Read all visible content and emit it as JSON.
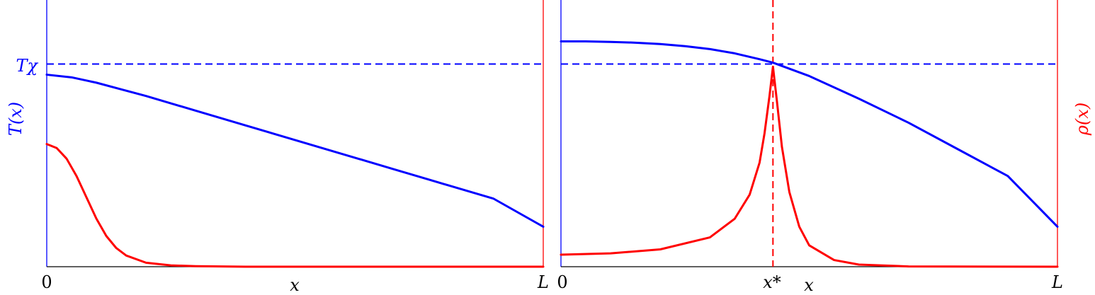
{
  "chart_data": [
    {
      "type": "line",
      "panel": "left",
      "xlabel": "x",
      "ylabel_left": "T(x)",
      "x_tick_labels": [
        "0",
        "L"
      ],
      "x_range": [
        0,
        1
      ],
      "y_range": [
        0,
        1
      ],
      "reference_lines": [
        {
          "orientation": "horizontal",
          "y": 0.76,
          "label": "Tχ",
          "color": "#0000ff",
          "style": "dashed"
        }
      ],
      "series": [
        {
          "color": "#0000ff",
          "x": [
            0,
            0.05,
            0.1,
            0.15,
            0.2,
            0.3,
            0.4,
            0.5,
            0.6,
            0.7,
            0.8,
            0.9,
            1.0
          ],
          "y": [
            0.72,
            0.71,
            0.69,
            0.665,
            0.64,
            0.585,
            0.53,
            0.475,
            0.42,
            0.365,
            0.31,
            0.255,
            0.15
          ]
        },
        {
          "color": "#ff0000",
          "x": [
            0,
            0.02,
            0.04,
            0.06,
            0.08,
            0.1,
            0.12,
            0.14,
            0.16,
            0.2,
            0.25,
            0.3,
            0.4,
            0.6,
            1.0
          ],
          "y": [
            0.46,
            0.445,
            0.405,
            0.34,
            0.26,
            0.18,
            0.115,
            0.07,
            0.042,
            0.015,
            0.005,
            0.002,
            0.0,
            0.0,
            0.0
          ]
        }
      ]
    },
    {
      "type": "line",
      "panel": "right",
      "xlabel": "x",
      "ylabel_right": "ρ(x)",
      "x_tick_labels": [
        "0",
        "x*",
        "L"
      ],
      "x_range": [
        0,
        1
      ],
      "y_range": [
        0,
        1
      ],
      "reference_lines": [
        {
          "orientation": "horizontal",
          "y": 0.76,
          "color": "#0000ff",
          "style": "dashed"
        },
        {
          "orientation": "vertical",
          "x": 0.427,
          "label": "x*",
          "color": "#ff0000",
          "style": "dashed"
        }
      ],
      "series": [
        {
          "color": "#0000ff",
          "x": [
            0,
            0.05,
            0.1,
            0.15,
            0.2,
            0.25,
            0.3,
            0.35,
            0.4,
            0.427,
            0.5,
            0.6,
            0.7,
            0.8,
            0.9,
            1.0
          ],
          "y": [
            0.845,
            0.845,
            0.843,
            0.84,
            0.835,
            0.827,
            0.816,
            0.8,
            0.778,
            0.765,
            0.715,
            0.63,
            0.54,
            0.44,
            0.34,
            0.15
          ],
          "_unused": null
        },
        {
          "color": "#ff0000",
          "x": [
            0,
            0.1,
            0.2,
            0.3,
            0.35,
            0.38,
            0.4,
            0.41,
            0.42,
            0.427,
            0.435,
            0.445,
            0.46,
            0.48,
            0.5,
            0.55,
            0.6,
            0.7,
            1.0
          ],
          "y": [
            0.045,
            0.05,
            0.065,
            0.11,
            0.18,
            0.27,
            0.39,
            0.5,
            0.64,
            0.75,
            0.62,
            0.45,
            0.28,
            0.15,
            0.08,
            0.025,
            0.008,
            0.001,
            0.0
          ]
        }
      ]
    }
  ]
}
